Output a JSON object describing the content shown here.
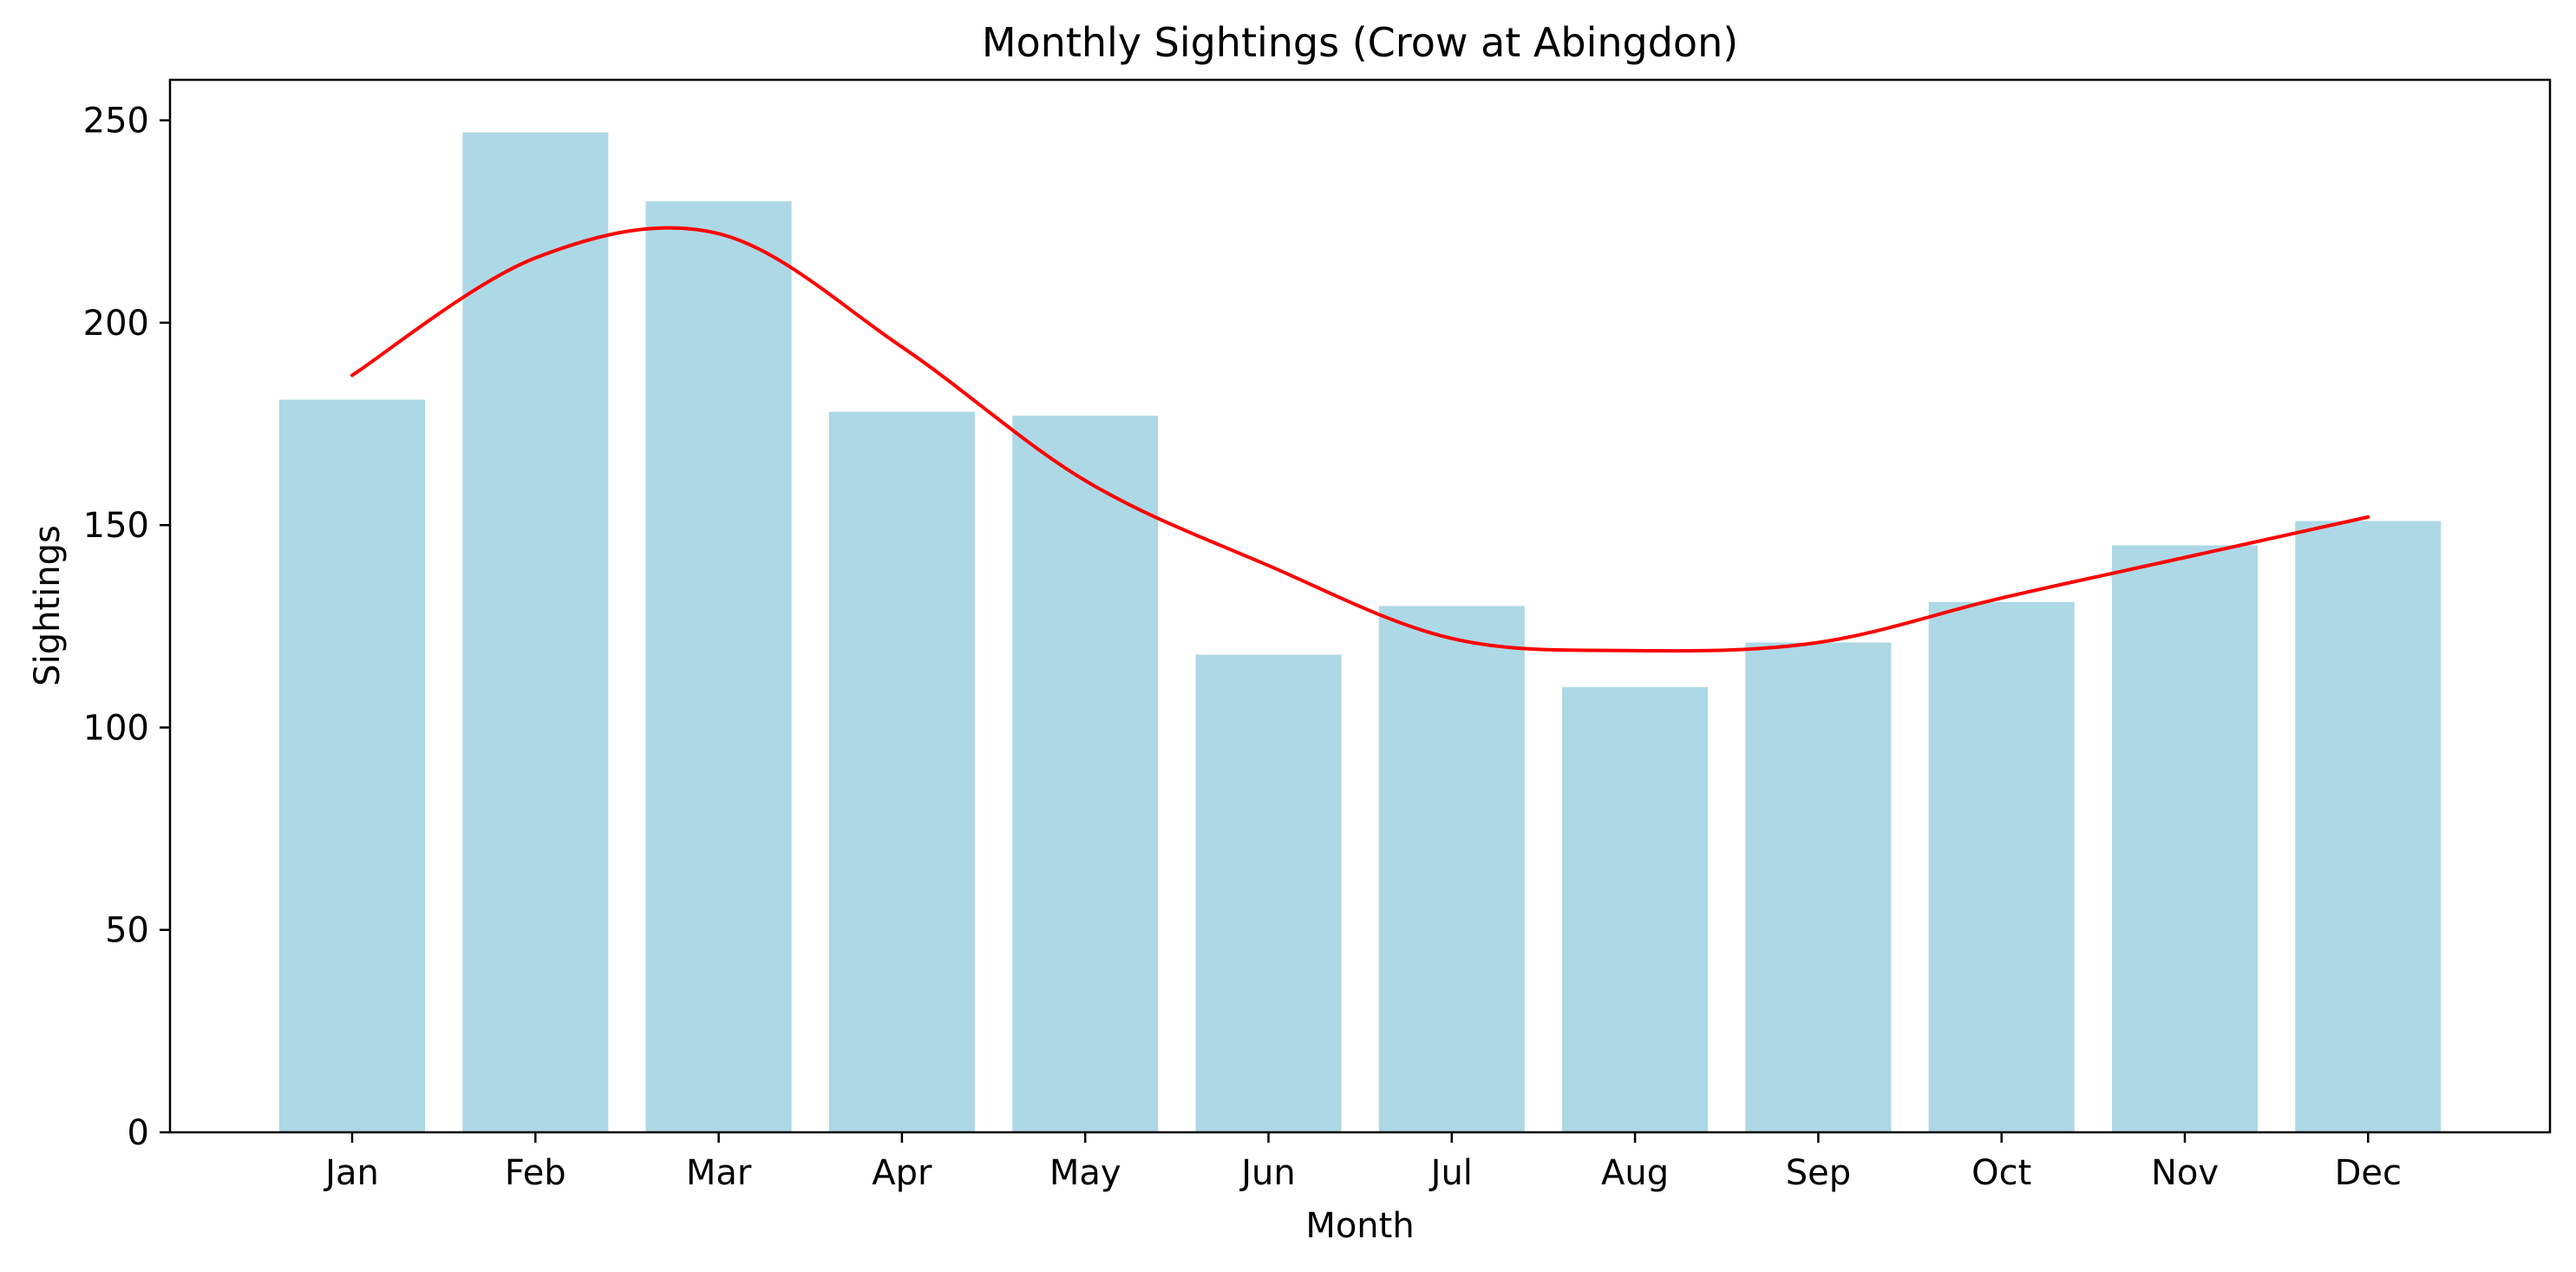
{
  "chart_data": {
    "type": "bar",
    "title": "Monthly Sightings (Crow at Abingdon)",
    "xlabel": "Month",
    "ylabel": "Sightings",
    "categories": [
      "Jan",
      "Feb",
      "Mar",
      "Apr",
      "May",
      "Jun",
      "Jul",
      "Aug",
      "Sep",
      "Oct",
      "Nov",
      "Dec"
    ],
    "values": [
      181,
      247,
      230,
      178,
      177,
      118,
      130,
      110,
      121,
      131,
      145,
      151
    ],
    "trend": [
      187,
      216,
      222,
      194,
      161,
      140,
      122,
      119,
      121,
      132,
      142,
      152
    ],
    "ylim": [
      0,
      260
    ],
    "yticks": [
      0,
      50,
      100,
      150,
      200,
      250
    ],
    "grid": false,
    "colors": {
      "bar": "#add8e6",
      "trend": "#ff0000",
      "axis": "#000000"
    }
  }
}
